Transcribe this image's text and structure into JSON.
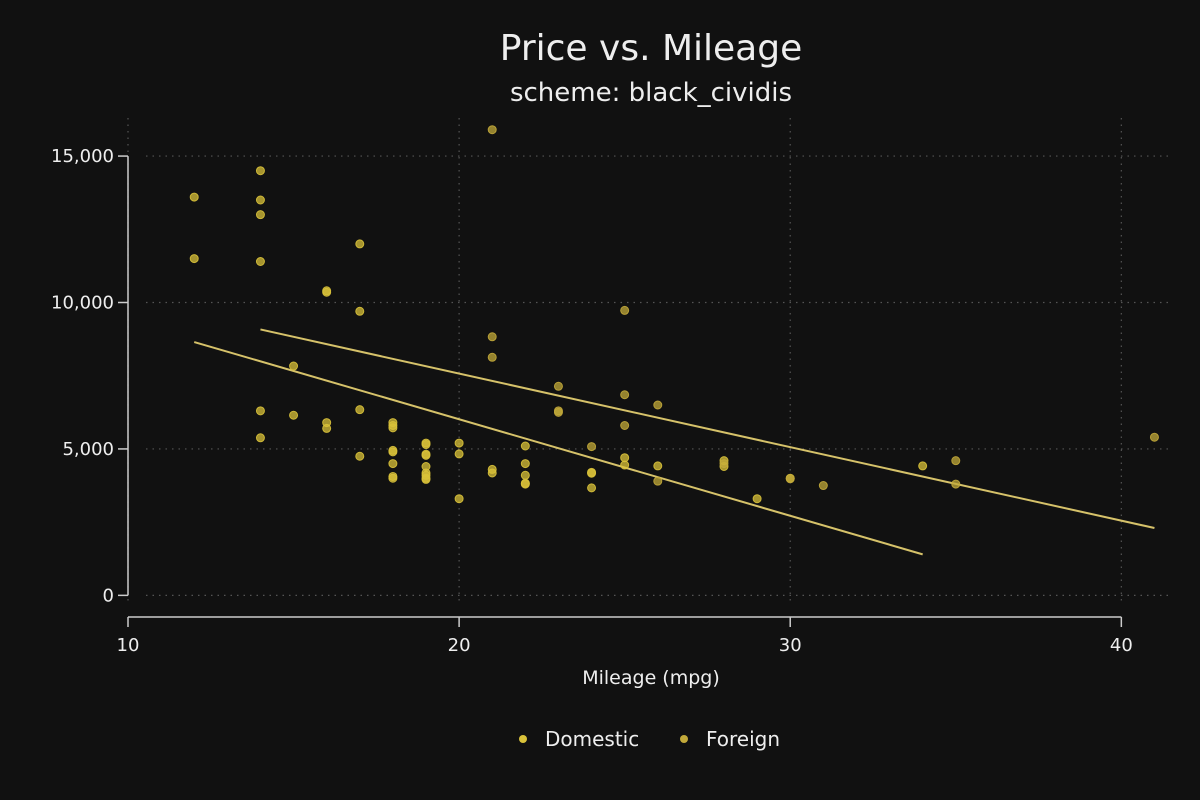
{
  "chart_data": {
    "type": "scatter",
    "title": "Price vs. Mileage",
    "subtitle": "scheme: black_cividis",
    "xlabel": "Mileage (mpg)",
    "ylabel": "",
    "xlim": [
      10,
      41.5
    ],
    "ylim": [
      -500,
      16300
    ],
    "x_ticks": [
      10,
      20,
      30,
      40
    ],
    "x_tick_labels": [
      "10",
      "20",
      "30",
      "40"
    ],
    "y_ticks": [
      0,
      5000,
      10000,
      15000
    ],
    "y_tick_labels": [
      "0",
      "5,000",
      "10,000",
      "15,000"
    ],
    "grid": true,
    "legend_position": "bottom",
    "colors": {
      "background": "#111111",
      "grid": "#555555",
      "axis": "#cccccc",
      "domestic": "#d9c23a",
      "foreign": "#c2a93a",
      "fit_line": "#d6c26a"
    },
    "series": [
      {
        "name": "Domestic",
        "points": [
          [
            12,
            13600
          ],
          [
            12,
            11500
          ],
          [
            14,
            14500
          ],
          [
            14,
            13500
          ],
          [
            14,
            13000
          ],
          [
            14,
            11400
          ],
          [
            14,
            6300
          ],
          [
            14,
            5380
          ],
          [
            15,
            7830
          ],
          [
            15,
            6150
          ],
          [
            16,
            10400
          ],
          [
            16,
            10350
          ],
          [
            16,
            5900
          ],
          [
            16,
            5700
          ],
          [
            17,
            12000
          ],
          [
            17,
            9700
          ],
          [
            17,
            6340
          ],
          [
            17,
            4750
          ],
          [
            18,
            5900
          ],
          [
            18,
            5800
          ],
          [
            18,
            5720
          ],
          [
            18,
            4950
          ],
          [
            18,
            4900
          ],
          [
            18,
            4500
          ],
          [
            18,
            4060
          ],
          [
            18,
            4000
          ],
          [
            19,
            5200
          ],
          [
            19,
            5150
          ],
          [
            19,
            4820
          ],
          [
            19,
            4780
          ],
          [
            19,
            4400
          ],
          [
            19,
            4180
          ],
          [
            19,
            4100
          ],
          [
            19,
            4000
          ],
          [
            19,
            3960
          ],
          [
            20,
            5200
          ],
          [
            20,
            4830
          ],
          [
            20,
            3300
          ],
          [
            21,
            4300
          ],
          [
            21,
            4180
          ],
          [
            22,
            5100
          ],
          [
            22,
            4500
          ],
          [
            22,
            4100
          ],
          [
            22,
            3830
          ],
          [
            22,
            3800
          ],
          [
            24,
            4200
          ],
          [
            24,
            4170
          ],
          [
            24,
            3670
          ],
          [
            25,
            4700
          ],
          [
            25,
            4450
          ],
          [
            26,
            4420
          ],
          [
            28,
            4600
          ],
          [
            28,
            4400
          ],
          [
            29,
            3300
          ],
          [
            30,
            4000
          ],
          [
            34,
            4420
          ]
        ],
        "fit": [
          [
            12,
            8650
          ],
          [
            34,
            1400
          ]
        ]
      },
      {
        "name": "Foreign",
        "points": [
          [
            21,
            15900
          ],
          [
            21,
            8830
          ],
          [
            21,
            8130
          ],
          [
            23,
            7140
          ],
          [
            23,
            6300
          ],
          [
            23,
            6250
          ],
          [
            24,
            5080
          ],
          [
            25,
            9730
          ],
          [
            25,
            6850
          ],
          [
            25,
            5800
          ],
          [
            26,
            6500
          ],
          [
            26,
            3900
          ],
          [
            28,
            4500
          ],
          [
            30,
            3980
          ],
          [
            31,
            3750
          ],
          [
            35,
            4600
          ],
          [
            35,
            3800
          ],
          [
            41,
            5400
          ]
        ],
        "fit": [
          [
            14,
            9080
          ],
          [
            41,
            2300
          ]
        ]
      }
    ]
  }
}
